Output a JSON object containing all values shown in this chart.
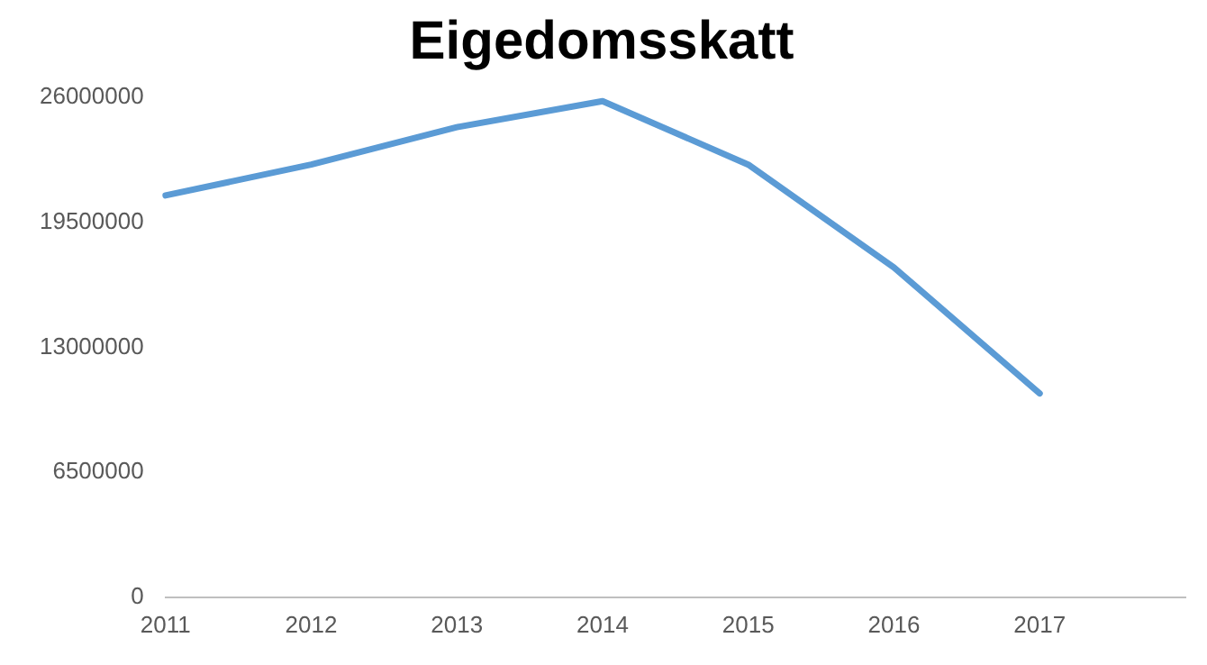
{
  "chart_data": {
    "type": "line",
    "title": "Eigedomsskatt",
    "categories": [
      "2011",
      "2012",
      "2013",
      "2014",
      "2015",
      "2016",
      "2017",
      null
    ],
    "series": [
      {
        "color": "#5b9bd5",
        "values": [
          20900000,
          22500000,
          24450000,
          25800000,
          22500000,
          17150000,
          10600000,
          null
        ]
      }
    ],
    "ylim": [
      0,
      26000000
    ],
    "yticks": [
      0,
      6500000,
      13000000,
      19500000,
      26000000
    ],
    "grid": false,
    "legend": false,
    "marker": "none",
    "line_style": "solid"
  }
}
